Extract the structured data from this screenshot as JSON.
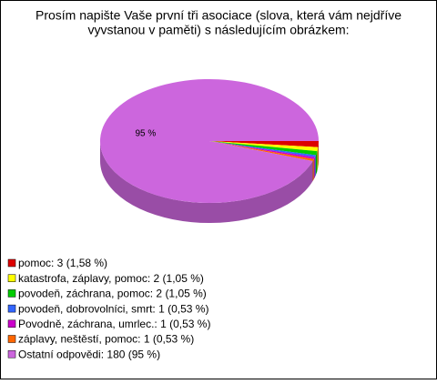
{
  "chart_data": {
    "type": "pie3d",
    "title": [
      "Prosím napište Vaše první tři asociace (slova, která vám nejdříve",
      "vyvstanou v paměti) s následujícím obrázkem:"
    ],
    "categories": [
      "pomoc: 3 (1,58 %)",
      "katastrofa, záplavy, pomoc: 2 (1,05 %)",
      "povodeň, záchrana, pomoc: 2 (1,05 %)",
      "povodeň, dobrovolníci, smrt: 1 (0,53 %)",
      "Povodně, záchrana, umrlec.: 1 (0,53 %)",
      "záplavy, neštěstí, pomoc: 1 (0,53 %)",
      "Ostatní odpovědi: 180 (95 %)"
    ],
    "values": [
      1.58,
      1.05,
      1.05,
      0.53,
      0.53,
      0.53,
      95
    ],
    "value_labels": [
      null,
      null,
      null,
      null,
      null,
      null,
      "95 %"
    ],
    "colors": [
      "#dd0000",
      "#ffff00",
      "#00cc00",
      "#3366ff",
      "#cc00cc",
      "#ff6600",
      "#cc66dd"
    ]
  }
}
